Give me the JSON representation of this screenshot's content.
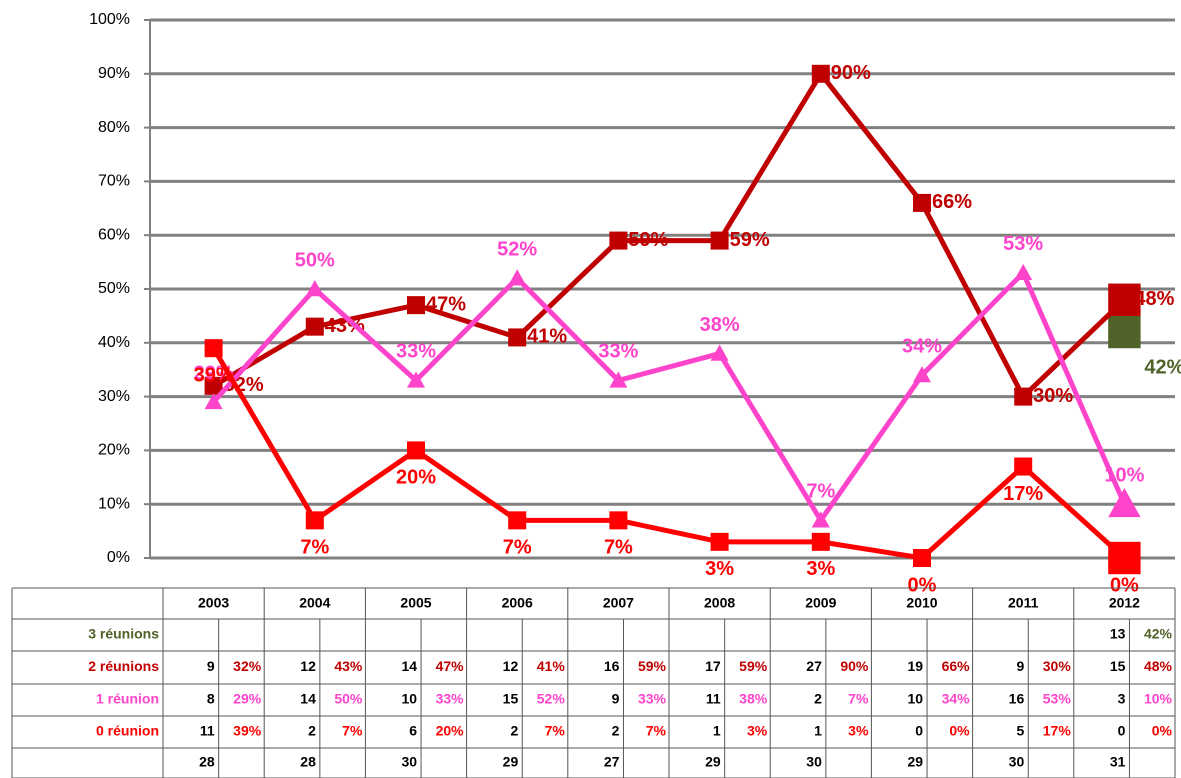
{
  "chart_data": {
    "type": "line",
    "categories": [
      "2003",
      "2004",
      "2005",
      "2006",
      "2007",
      "2008",
      "2009",
      "2010",
      "2011",
      "2012"
    ],
    "ylim": [
      0,
      100
    ],
    "yticks": [
      {
        "value": 0,
        "label": "0%"
      },
      {
        "value": 10,
        "label": "10%"
      },
      {
        "value": 20,
        "label": "20%"
      },
      {
        "value": 30,
        "label": "30%"
      },
      {
        "value": 40,
        "label": "40%"
      },
      {
        "value": 50,
        "label": "50%"
      },
      {
        "value": 60,
        "label": "60%"
      },
      {
        "value": 70,
        "label": "70%"
      },
      {
        "value": 80,
        "label": "80%"
      },
      {
        "value": 90,
        "label": "90%"
      },
      {
        "value": 100,
        "label": "100%"
      }
    ],
    "grid": true,
    "series": [
      {
        "name": "3 réunions",
        "color": "#4f6228",
        "marker": "square",
        "values": [
          null,
          null,
          null,
          null,
          null,
          null,
          null,
          null,
          null,
          42
        ],
        "value_labels": [
          null,
          null,
          null,
          null,
          null,
          null,
          null,
          null,
          null,
          "42%"
        ],
        "counts": [
          null,
          null,
          null,
          null,
          null,
          null,
          null,
          null,
          null,
          13
        ]
      },
      {
        "name": "2 réunions",
        "color": "#c00000",
        "marker": "square",
        "values": [
          32,
          43,
          47,
          41,
          59,
          59,
          90,
          66,
          30,
          48
        ],
        "value_labels": [
          "32%",
          "43%",
          "47%",
          "41%",
          "59%",
          "59%",
          "90%",
          "66%",
          "30%",
          "48%"
        ],
        "counts": [
          9,
          12,
          14,
          12,
          16,
          17,
          27,
          19,
          9,
          15
        ]
      },
      {
        "name": "1 réunion",
        "color": "#ff44cc",
        "marker": "triangle",
        "values": [
          29,
          50,
          33,
          52,
          33,
          38,
          7,
          34,
          53,
          10
        ],
        "value_labels": [
          "29%",
          "50%",
          "33%",
          "52%",
          "33%",
          "38%",
          "7%",
          "34%",
          "53%",
          "10%"
        ],
        "counts": [
          8,
          14,
          10,
          15,
          9,
          11,
          2,
          10,
          16,
          3
        ]
      },
      {
        "name": "0 réunion",
        "color": "#ff0000",
        "marker": "square",
        "values": [
          39,
          7,
          20,
          7,
          7,
          3,
          3,
          0,
          17,
          0
        ],
        "value_labels": [
          "39%",
          "7%",
          "20%",
          "7%",
          "7%",
          "3%",
          "3%",
          "0%",
          "17%",
          "0%"
        ],
        "counts": [
          11,
          2,
          6,
          2,
          2,
          1,
          1,
          0,
          5,
          0
        ]
      }
    ],
    "totals": [
      28,
      28,
      30,
      29,
      27,
      29,
      30,
      29,
      30,
      31
    ]
  }
}
